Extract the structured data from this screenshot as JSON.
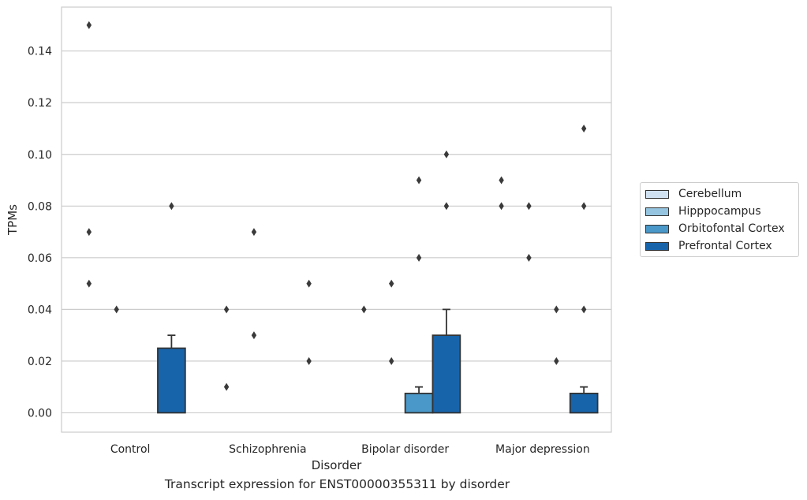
{
  "chart_data": {
    "type": "bar",
    "title": "",
    "caption": "Transcript expression for ENST00000355311 by disorder",
    "xlabel": "Disorder",
    "ylabel": "TPMs",
    "ylim": [
      -0.0075,
      0.157
    ],
    "yticks": [
      0.0,
      0.02,
      0.04,
      0.06,
      0.08,
      0.1,
      0.12,
      0.14
    ],
    "ytick_labels": [
      "0.00",
      "0.02",
      "0.04",
      "0.06",
      "0.08",
      "0.10",
      "0.12",
      "0.14"
    ],
    "grid": "horizontal",
    "legend_placement": "right-center",
    "categories": [
      "Control",
      "Schizophrenia",
      "Bipolar disorder",
      "Major depression"
    ],
    "series": [
      {
        "name": "Cerebellum",
        "color": "#d0e1f2",
        "values": [
          0,
          0,
          0,
          0
        ],
        "errors": [
          null,
          null,
          null,
          null
        ],
        "outliers": [
          [
            0.15,
            0.07,
            0.05
          ],
          [
            0.04,
            0.01
          ],
          [
            0.04
          ],
          [
            0.09,
            0.08
          ]
        ]
      },
      {
        "name": "Hipppocampus",
        "color": "#94c4df",
        "values": [
          0,
          0,
          0,
          0
        ],
        "errors": [
          null,
          null,
          null,
          null
        ],
        "outliers": [
          [
            0.04
          ],
          [
            0.07,
            0.03
          ],
          [
            0.05,
            0.02
          ],
          [
            0.08,
            0.06
          ]
        ]
      },
      {
        "name": "Orbitofontal Cortex",
        "color": "#4a98c9",
        "values": [
          0,
          0,
          0.0075,
          0
        ],
        "errors": [
          null,
          null,
          0.01,
          null
        ],
        "outliers": [
          [],
          [],
          [
            0.09,
            0.06
          ],
          [
            0.04,
            0.02
          ]
        ]
      },
      {
        "name": "Prefrontal Cortex",
        "color": "#1764ab",
        "values": [
          0.025,
          0,
          0.03,
          0.0075
        ],
        "errors": [
          0.03,
          null,
          0.04,
          0.01
        ],
        "outliers": [
          [
            0.08
          ],
          [
            0.05,
            0.02
          ],
          [
            0.1,
            0.08
          ],
          [
            0.11,
            0.08,
            0.04
          ]
        ]
      }
    ]
  }
}
